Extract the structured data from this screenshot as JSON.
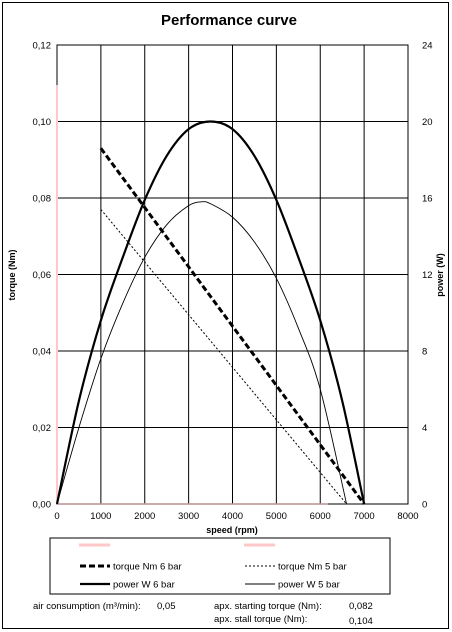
{
  "chart_data": {
    "type": "line",
    "title": "Performance curve",
    "xlabel": "speed (rpm)",
    "ylabel": "torque (Nm)",
    "y2label": "power (W)",
    "xlim": [
      0,
      8000
    ],
    "ylim": [
      0,
      0.12
    ],
    "y2lim": [
      0,
      24
    ],
    "xticks": [
      "0",
      "1000",
      "2000",
      "3000",
      "4000",
      "5000",
      "6000",
      "7000",
      "8000"
    ],
    "yticks": [
      "0,00",
      "0,02",
      "0,04",
      "0,06",
      "0,08",
      "0,10",
      "0,12"
    ],
    "y2ticks": [
      "0",
      "4",
      "8",
      "12",
      "16",
      "20",
      "24"
    ],
    "grid": true,
    "legend_position": "bottom",
    "series": [
      {
        "name": "torque Nm 6 bar",
        "axis": "left",
        "style": "dashed-thick",
        "x": [
          1000,
          7000
        ],
        "y": [
          0.093,
          0.0
        ]
      },
      {
        "name": "torque Nm 5 bar",
        "axis": "left",
        "style": "dotted-thin",
        "x": [
          1000,
          6600
        ],
        "y": [
          0.077,
          0.0
        ]
      },
      {
        "name": "power W 6 bar",
        "axis": "right",
        "style": "solid-thick",
        "x": [
          0,
          500,
          1000,
          1500,
          2000,
          2500,
          3000,
          3500,
          4000,
          4500,
          5000,
          5500,
          6000,
          6500,
          7000
        ],
        "y": [
          0,
          5.4,
          9.6,
          12.9,
          15.9,
          18.2,
          19.6,
          20.0,
          19.6,
          18.2,
          15.9,
          12.9,
          9.6,
          5.4,
          0
        ]
      },
      {
        "name": "power W 5 bar",
        "axis": "right",
        "style": "solid-thin",
        "x": [
          0,
          500,
          1000,
          1500,
          2000,
          2500,
          3000,
          3300,
          3500,
          4000,
          4500,
          5000,
          5500,
          6000,
          6600
        ],
        "y": [
          0,
          4.0,
          7.6,
          10.5,
          12.9,
          14.6,
          15.6,
          15.8,
          15.7,
          15.0,
          13.7,
          11.8,
          9.2,
          6.0,
          0
        ]
      }
    ]
  },
  "footer": {
    "air_label": "air consumption (m³/min):",
    "air_value": "0,05",
    "start_label": "apx. starting torque (Nm):",
    "start_value": "0,082",
    "stall_label": "apx. stall torque (Nm):",
    "stall_value": "0,104"
  },
  "colors": {
    "line": "#000000",
    "grid": "#000000",
    "legend_marker": "#ffc8c8"
  }
}
